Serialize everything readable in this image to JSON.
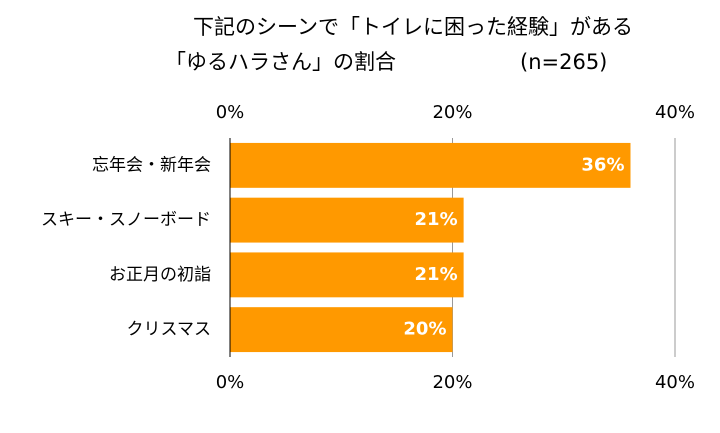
{
  "chart_data": {
    "type": "bar",
    "orientation": "horizontal",
    "title": [
      "下記のシーンで「トイレに困った経験」がある",
      "「ゆるハラさん」の割合"
    ],
    "note": "(n=265)",
    "categories": [
      "忘年会・新年会",
      "スキー・スノーボード",
      "お正月の初詣",
      "クリスマス"
    ],
    "values": [
      36,
      21,
      21,
      20
    ],
    "value_labels": [
      "36%",
      "21%",
      "21%",
      "20%"
    ],
    "color": "#ff9900",
    "xlim": [
      0,
      40
    ],
    "xticks": [
      {
        "value": 0,
        "label": "0%"
      },
      {
        "value": 20,
        "label": "20%"
      },
      {
        "value": 40,
        "label": "40%"
      }
    ],
    "grid": true
  }
}
